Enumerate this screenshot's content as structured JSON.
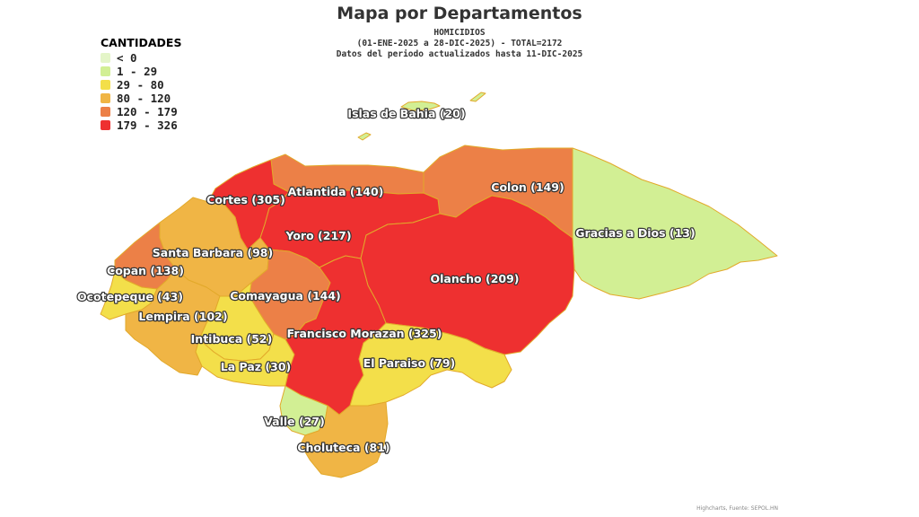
{
  "title": "Mapa por Departamentos",
  "subtitle": {
    "line1": "HOMICIDIOS",
    "line2": "(01-ENE-2025 a 28-DIC-2025) - TOTAL=2172",
    "line3": "Datos del periodo actualizados hasta 11-DIC-2025"
  },
  "legend": {
    "title": "CANTIDADES",
    "items": [
      {
        "label": "< 0",
        "color": "#e4f5c8"
      },
      {
        "label": "1 - 29",
        "color": "#d2ef94"
      },
      {
        "label": "29 - 80",
        "color": "#f3df4a"
      },
      {
        "label": "80 - 120",
        "color": "#f0b545"
      },
      {
        "label": "120 - 179",
        "color": "#ec8047"
      },
      {
        "label": "179 - 326",
        "color": "#ee3030"
      }
    ]
  },
  "departments": [
    {
      "id": "islas",
      "label": "Islas de Bahia (20)",
      "value": 20,
      "color": "#d2ef94"
    },
    {
      "id": "cortes",
      "label": "Cortes (305)",
      "value": 305,
      "color": "#ee3030"
    },
    {
      "id": "atlantida",
      "label": "Atlantida (140)",
      "value": 140,
      "color": "#ec8047"
    },
    {
      "id": "colon",
      "label": "Colon (149)",
      "value": 149,
      "color": "#ec8047"
    },
    {
      "id": "gracias",
      "label": "Gracias a Dios (13)",
      "value": 13,
      "color": "#d2ef94"
    },
    {
      "id": "yoro",
      "label": "Yoro (217)",
      "value": 217,
      "color": "#ee3030"
    },
    {
      "id": "santabarbara",
      "label": "Santa Barbara (98)",
      "value": 98,
      "color": "#f0b545"
    },
    {
      "id": "copan",
      "label": "Copan (138)",
      "value": 138,
      "color": "#ec8047"
    },
    {
      "id": "olancho",
      "label": "Olancho (209)",
      "value": 209,
      "color": "#ee3030"
    },
    {
      "id": "ocotepeque",
      "label": "Ocotepeque (43)",
      "value": 43,
      "color": "#f3df4a"
    },
    {
      "id": "comayagua",
      "label": "Comayagua (144)",
      "value": 144,
      "color": "#ec8047"
    },
    {
      "id": "lempira",
      "label": "Lempira (102)",
      "value": 102,
      "color": "#f0b545"
    },
    {
      "id": "intibuca",
      "label": "Intibuca (52)",
      "value": 52,
      "color": "#f3df4a"
    },
    {
      "id": "fmorazan",
      "label": "Francisco Morazan (325)",
      "value": 325,
      "color": "#ee3030"
    },
    {
      "id": "lapaz",
      "label": "La Paz (30)",
      "value": 30,
      "color": "#f3df4a"
    },
    {
      "id": "elparaiso",
      "label": "El Paraiso (79)",
      "value": 79,
      "color": "#f3df4a"
    },
    {
      "id": "valle",
      "label": "Valle (27)",
      "value": 27,
      "color": "#d2ef94"
    },
    {
      "id": "choluteca",
      "label": "Choluteca (81)",
      "value": 81,
      "color": "#f0b545"
    }
  ],
  "credits": "Highcharts, Fuente: SEPOL.HN"
}
